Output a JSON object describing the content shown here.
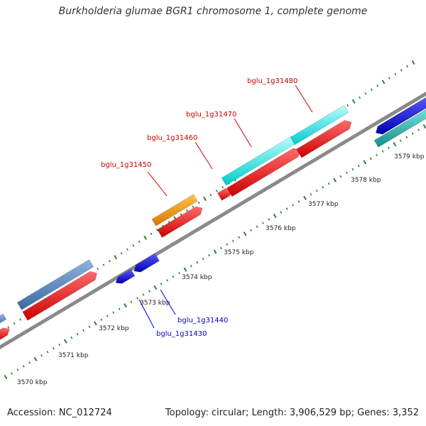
{
  "title": "Burkholderia glumae BGR1 chromosome 1, complete genome",
  "footer": {
    "accession": "Accession: NC_012724",
    "genome_info": "Topology: circular; Length: 3,906,529 bp; Genes: 3,352"
  },
  "colors": {
    "background": "#ffffff",
    "backbone": "#808080",
    "tick": "#2e7d32",
    "cds_forward": "#ff0000",
    "label_forward": "#cc0000",
    "label_reverse": "#0000cc",
    "gene_orange": "#ff9900",
    "gene_cyan": "#00ffff",
    "gene_steelblue": "#4f81bd",
    "gene_darkcyan": "#20b2aa",
    "gene_blue": "#0000ff"
  },
  "kbp_labels": [
    "3570 kbp",
    "3571 kbp",
    "3572 kbp",
    "3573 kbp",
    "3574 kbp",
    "3575 kbp",
    "3576 kbp",
    "3577 kbp",
    "3578 kbp",
    "3579 kbp"
  ],
  "gene_labels": [
    {
      "name": "bglu_1g31430",
      "strand": "reverse"
    },
    {
      "name": "bglu_1g31440",
      "strand": "reverse"
    },
    {
      "name": "bglu_1g31450",
      "strand": "forward"
    },
    {
      "name": "bglu_1g31460",
      "strand": "forward"
    },
    {
      "name": "bglu_1g31470",
      "strand": "forward"
    },
    {
      "name": "bglu_1g31480",
      "strand": "forward"
    }
  ]
}
